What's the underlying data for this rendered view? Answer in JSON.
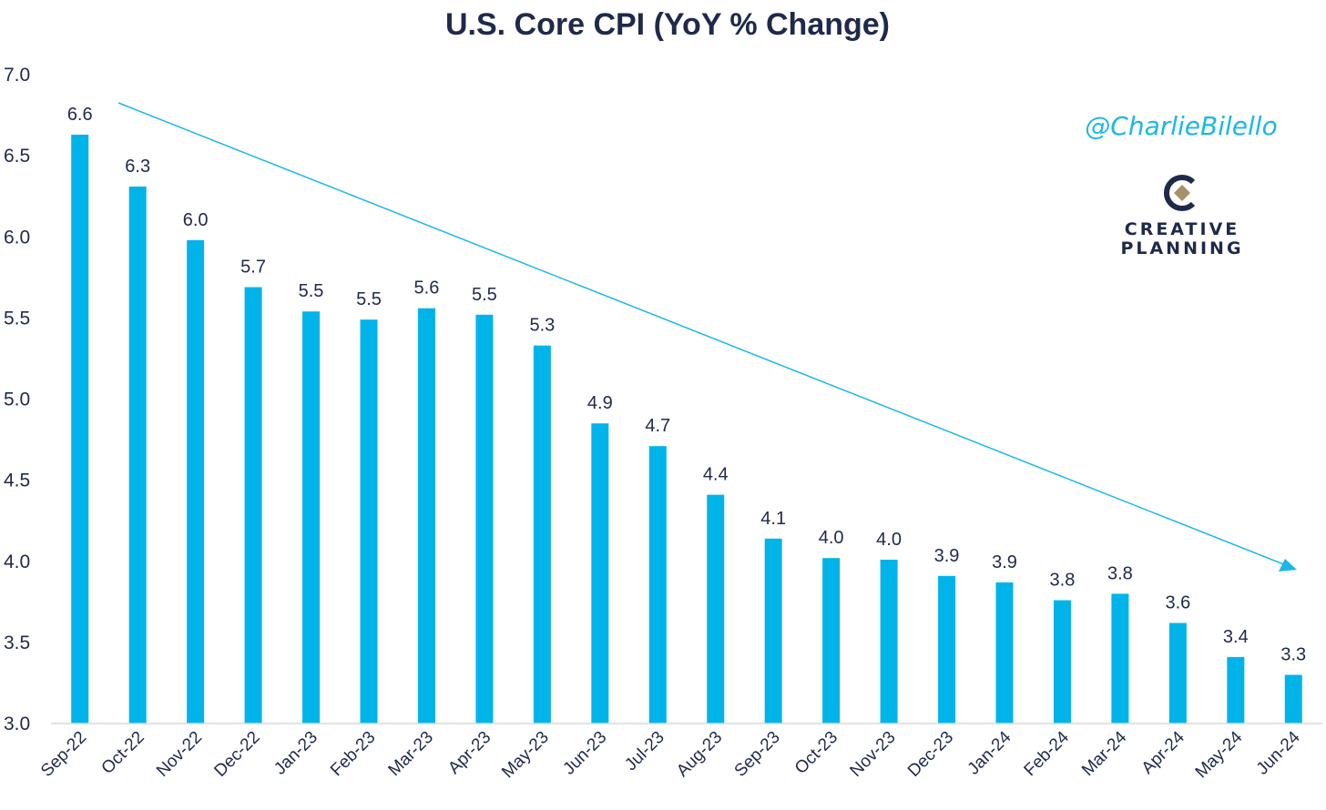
{
  "chart_data": {
    "type": "bar",
    "title": "U.S. Core CPI (YoY % Change)",
    "xlabel": "",
    "ylabel": "",
    "ylim": [
      3.0,
      7.0
    ],
    "yticks": [
      "3.0",
      "3.5",
      "4.0",
      "4.5",
      "5.0",
      "5.5",
      "6.0",
      "6.5",
      "7.0"
    ],
    "categories": [
      "Sep-22",
      "Oct-22",
      "Nov-22",
      "Dec-22",
      "Jan-23",
      "Feb-23",
      "Mar-23",
      "Apr-23",
      "May-23",
      "Jun-23",
      "Jul-23",
      "Aug-23",
      "Sep-23",
      "Oct-23",
      "Nov-23",
      "Dec-23",
      "Jan-24",
      "Feb-24",
      "Mar-24",
      "Apr-24",
      "May-24",
      "Jun-24"
    ],
    "values": [
      6.63,
      6.31,
      5.98,
      5.69,
      5.54,
      5.49,
      5.56,
      5.52,
      5.33,
      4.85,
      4.71,
      4.41,
      4.14,
      4.02,
      4.01,
      3.91,
      3.87,
      3.76,
      3.8,
      3.62,
      3.41,
      3.3
    ],
    "value_labels": [
      "6.6",
      "6.3",
      "6.0",
      "5.7",
      "5.5",
      "5.5",
      "5.6",
      "5.5",
      "5.3",
      "4.9",
      "4.7",
      "4.4",
      "4.1",
      "4.0",
      "4.0",
      "3.9",
      "3.9",
      "3.8",
      "3.8",
      "3.6",
      "3.4",
      "3.3"
    ],
    "grid": false,
    "legend": "none",
    "annotation": "downward trend arrow"
  },
  "colors": {
    "bar": "#00b4ea",
    "arrow": "#1bb8e6",
    "text": "#1f2a4a",
    "handle": "#1bb8e6",
    "logo_dark": "#1f2a4a",
    "logo_gold": "#a8916a"
  },
  "watermark": {
    "handle": "@CharlieBilello",
    "brand_line1": "CREATIVE",
    "brand_line2": "PLANNING"
  }
}
